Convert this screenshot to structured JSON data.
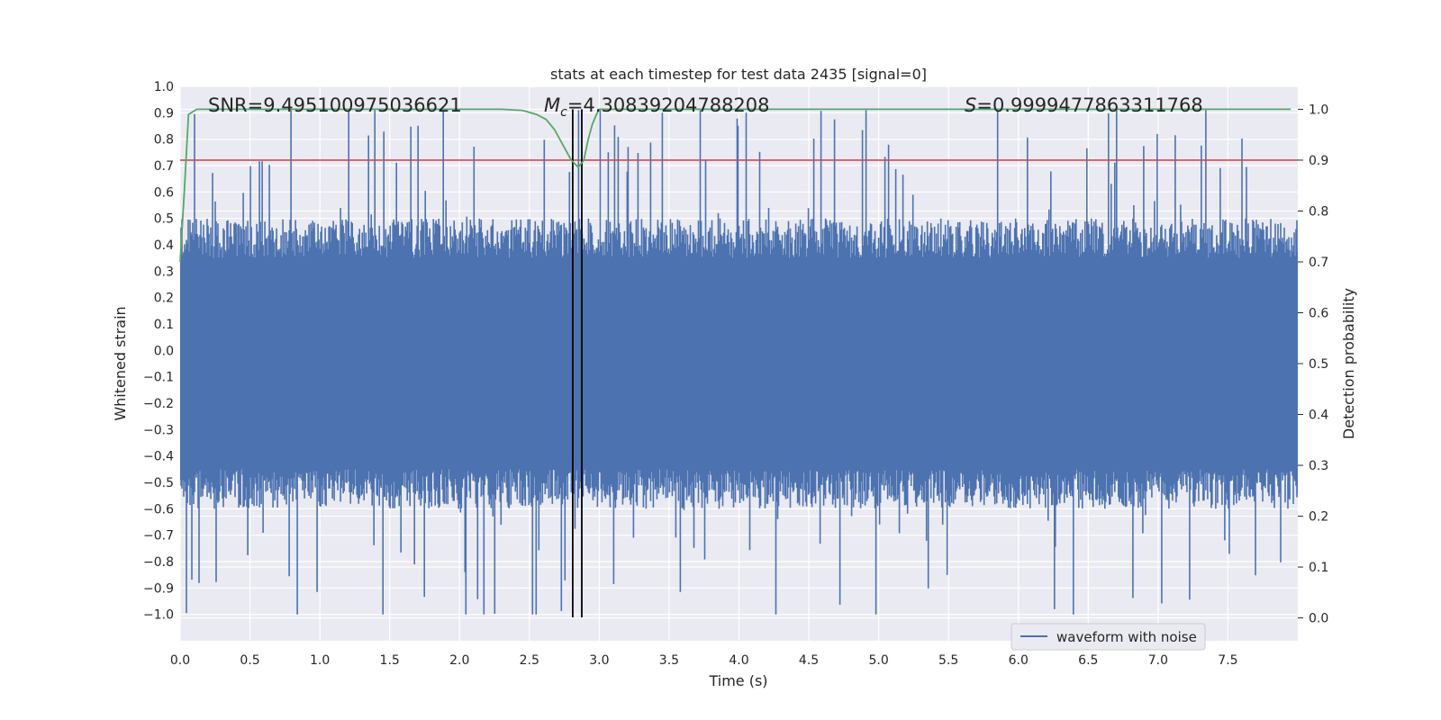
{
  "chart_data": {
    "type": "line",
    "title": "stats at each timestep for test data 2435 [signal=0]",
    "xlabel": "Time (s)",
    "ylabel": "Whitened strain",
    "y2label": "Detection probability",
    "xlim": [
      0,
      8
    ],
    "ylim": [
      -1.1,
      1.0
    ],
    "y2lim": [
      -0.045,
      1.045
    ],
    "xticks": [
      "0.0",
      "0.5",
      "1.0",
      "1.5",
      "2.0",
      "2.5",
      "3.0",
      "3.5",
      "4.0",
      "4.5",
      "5.0",
      "5.5",
      "6.0",
      "6.5",
      "7.0",
      "7.5"
    ],
    "yticks": [
      "1.0",
      "0.9",
      "0.8",
      "0.7",
      "0.6",
      "0.5",
      "0.4",
      "0.3",
      "0.2",
      "0.1",
      "0.0",
      "−0.1",
      "−0.2",
      "−0.3",
      "−0.4",
      "−0.5",
      "−0.6",
      "−0.7",
      "−0.8",
      "−0.9",
      "−1.0"
    ],
    "y2ticks": [
      "1.0",
      "0.9",
      "0.8",
      "0.7",
      "0.6",
      "0.5",
      "0.4",
      "0.3",
      "0.2",
      "0.1",
      "0.0"
    ],
    "annotations": {
      "snr": "SNR=9.495100975036621",
      "mc": "=4.30839204788208",
      "mc_symbol": "M",
      "mc_sub": "c",
      "s": "=0.9999477863311768",
      "s_symbol": "S"
    },
    "legend": {
      "label": "waveform with noise",
      "position": "lower-right"
    },
    "threshold": 0.9,
    "vlines": [
      2.81,
      2.875
    ],
    "waveform_color": "#4c72b0",
    "probability_color": "#55a868",
    "threshold_color": "#c44e52",
    "waveform_summary": {
      "description": "dense whitened noise, peak |strain| about 1.0",
      "min": -1.0,
      "max": 0.91,
      "typical_range": [
        -0.45,
        0.35
      ]
    },
    "detection_probability": {
      "t": [
        0.0,
        0.03,
        0.06,
        0.12,
        0.5,
        1.0,
        1.5,
        2.0,
        2.3,
        2.45,
        2.55,
        2.62,
        2.68,
        2.74,
        2.8,
        2.85,
        2.89,
        2.92,
        2.95,
        2.98,
        3.0,
        3.1,
        4.0,
        5.0,
        6.0,
        7.0,
        7.95
      ],
      "p": [
        0.7,
        0.84,
        0.99,
        1.0,
        1.0,
        1.0,
        1.0,
        1.0,
        1.0,
        0.998,
        0.99,
        0.98,
        0.96,
        0.93,
        0.9,
        0.886,
        0.9,
        0.94,
        0.97,
        0.99,
        1.0,
        1.0,
        1.0,
        1.0,
        1.0,
        1.0,
        1.0
      ]
    }
  }
}
